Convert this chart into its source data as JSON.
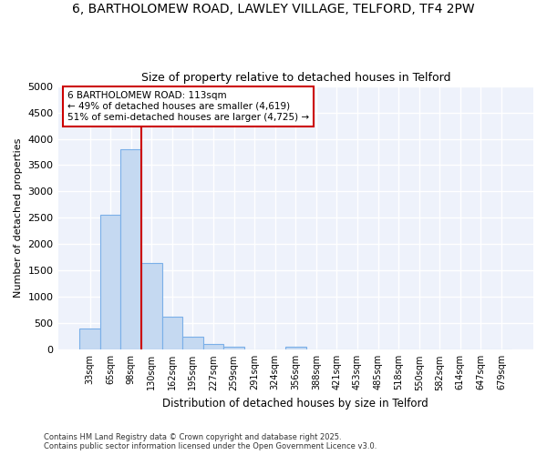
{
  "title_line1": "6, BARTHOLOMEW ROAD, LAWLEY VILLAGE, TELFORD, TF4 2PW",
  "title_line2": "Size of property relative to detached houses in Telford",
  "xlabel": "Distribution of detached houses by size in Telford",
  "ylabel": "Number of detached properties",
  "categories": [
    "33sqm",
    "65sqm",
    "98sqm",
    "130sqm",
    "162sqm",
    "195sqm",
    "227sqm",
    "259sqm",
    "291sqm",
    "324sqm",
    "356sqm",
    "388sqm",
    "421sqm",
    "453sqm",
    "485sqm",
    "518sqm",
    "550sqm",
    "582sqm",
    "614sqm",
    "647sqm",
    "679sqm"
  ],
  "values": [
    400,
    2560,
    3800,
    1650,
    620,
    250,
    110,
    50,
    0,
    0,
    50,
    0,
    0,
    0,
    0,
    0,
    0,
    0,
    0,
    0,
    0
  ],
  "bar_color": "#c5d9f1",
  "bar_edge_color": "#7aafe8",
  "red_line_x": 2.5,
  "ylim": [
    0,
    5000
  ],
  "yticks": [
    0,
    500,
    1000,
    1500,
    2000,
    2500,
    3000,
    3500,
    4000,
    4500,
    5000
  ],
  "annotation_text": "6 BARTHOLOMEW ROAD: 113sqm\n← 49% of detached houses are smaller (4,619)\n51% of semi-detached houses are larger (4,725) →",
  "annotation_box_facecolor": "#ffffff",
  "annotation_box_edgecolor": "#cc0000",
  "footer_text": "Contains HM Land Registry data © Crown copyright and database right 2025.\nContains public sector information licensed under the Open Government Licence v3.0.",
  "fig_facecolor": "#ffffff",
  "ax_facecolor": "#eef2fb",
  "grid_color": "#ffffff"
}
